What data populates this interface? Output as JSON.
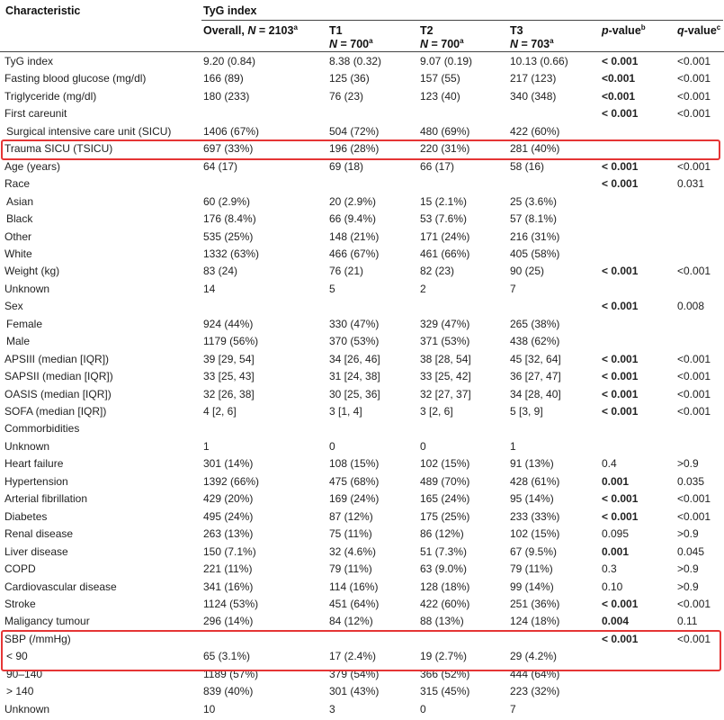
{
  "header": {
    "characteristic": "Characteristic",
    "group": "TyG index",
    "overall": {
      "label": "Overall,",
      "n": "N",
      "eq": " = 2103",
      "sup": "a"
    },
    "t1": {
      "label": "T1",
      "n": "N",
      "eq": " = 700",
      "sup": "a"
    },
    "t2": {
      "label": "T2",
      "n": "N",
      "eq": " = 700",
      "sup": "a"
    },
    "t3": {
      "label": "T3",
      "n": "N",
      "eq": " = 703",
      "sup": "a"
    },
    "p": {
      "label": "p",
      "rest": "-value",
      "sup": "b"
    },
    "q": {
      "label": "q",
      "rest": "-value",
      "sup": "c"
    }
  },
  "rows": [
    {
      "label": "TyG index",
      "overall": "9.20 (0.84)",
      "t1": "8.38 (0.32)",
      "t2": "9.07 (0.19)",
      "t3": "10.13 (0.66)",
      "p": "< 0.001",
      "p_bold": true,
      "q": "<0.001"
    },
    {
      "label": "Fasting blood glucose (mg/dl)",
      "overall": "166 (89)",
      "t1": "125 (36)",
      "t2": "157 (55)",
      "t3": "217 (123)",
      "p": "<0.001",
      "p_bold": true,
      "q": "<0.001"
    },
    {
      "label": "Triglyceride (mg/dl)",
      "overall": "180 (233)",
      "t1": "76 (23)",
      "t2": "123 (40)",
      "t3": "340 (348)",
      "p": "<0.001",
      "p_bold": true,
      "q": "<0.001"
    },
    {
      "label": "First careunit",
      "overall": "",
      "t1": "",
      "t2": "",
      "t3": "",
      "p": "< 0.001",
      "p_bold": true,
      "q": "<0.001"
    },
    {
      "label": "Surgical intensive care unit (SICU)",
      "indent": true,
      "overall": "1406 (67%)",
      "t1": "504 (72%)",
      "t2": "480 (69%)",
      "t3": "422 (60%)",
      "p": "",
      "q": ""
    },
    {
      "label": "Trauma SICU (TSICU)",
      "overall": "697 (33%)",
      "t1": "196 (28%)",
      "t2": "220 (31%)",
      "t3": "281 (40%)",
      "p": "",
      "q": ""
    },
    {
      "label": "Age (years)",
      "overall": "64 (17)",
      "t1": "69 (18)",
      "t2": "66 (17)",
      "t3": "58 (16)",
      "p": "< 0.001",
      "p_bold": true,
      "q": "<0.001"
    },
    {
      "label": "Race",
      "overall": "",
      "t1": "",
      "t2": "",
      "t3": "",
      "p": "< 0.001",
      "p_bold": true,
      "q": "0.031"
    },
    {
      "label": "Asian",
      "indent": true,
      "overall": "60 (2.9%)",
      "t1": "20 (2.9%)",
      "t2": "15 (2.1%)",
      "t3": "25 (3.6%)",
      "p": "",
      "q": ""
    },
    {
      "label": "Black",
      "indent": true,
      "overall": "176 (8.4%)",
      "t1": "66 (9.4%)",
      "t2": "53 (7.6%)",
      "t3": "57 (8.1%)",
      "p": "",
      "q": ""
    },
    {
      "label": "Other",
      "overall": "535 (25%)",
      "t1": "148 (21%)",
      "t2": "171 (24%)",
      "t3": "216 (31%)",
      "p": "",
      "q": ""
    },
    {
      "label": "White",
      "overall": "1332 (63%)",
      "t1": "466 (67%)",
      "t2": "461 (66%)",
      "t3": "405 (58%)",
      "p": "",
      "q": ""
    },
    {
      "label": "Weight (kg)",
      "overall": "83 (24)",
      "t1": "76 (21)",
      "t2": "82 (23)",
      "t3": "90 (25)",
      "p": "< 0.001",
      "p_bold": true,
      "q": "<0.001"
    },
    {
      "label": "Unknown",
      "overall": "14",
      "t1": "5",
      "t2": "2",
      "t3": "7",
      "p": "",
      "q": ""
    },
    {
      "label": "Sex",
      "overall": "",
      "t1": "",
      "t2": "",
      "t3": "",
      "p": "< 0.001",
      "p_bold": true,
      "q": "0.008"
    },
    {
      "label": "Female",
      "indent": true,
      "overall": "924 (44%)",
      "t1": "330 (47%)",
      "t2": "329 (47%)",
      "t3": "265 (38%)",
      "p": "",
      "q": ""
    },
    {
      "label": "Male",
      "indent": true,
      "overall": "1179 (56%)",
      "t1": "370 (53%)",
      "t2": "371 (53%)",
      "t3": "438 (62%)",
      "p": "",
      "q": ""
    },
    {
      "label": "APSIII (median [IQR])",
      "overall": "39 [29, 54]",
      "t1": "34 [26, 46]",
      "t2": "38 [28, 54]",
      "t3": "45 [32, 64]",
      "p": "< 0.001",
      "p_bold": true,
      "q": "<0.001"
    },
    {
      "label": "SAPSII (median [IQR])",
      "overall": "33 [25, 43]",
      "t1": "31 [24, 38]",
      "t2": "33 [25, 42]",
      "t3": "36 [27, 47]",
      "p": "< 0.001",
      "p_bold": true,
      "q": "<0.001"
    },
    {
      "label": "OASIS (median [IQR])",
      "overall": "32 [26, 38]",
      "t1": "30 [25, 36]",
      "t2": "32 [27, 37]",
      "t3": "34 [28, 40]",
      "p": "< 0.001",
      "p_bold": true,
      "q": "<0.001"
    },
    {
      "label": "SOFA (median [IQR])",
      "overall": "4 [2, 6]",
      "t1": "3 [1, 4]",
      "t2": "3 [2, 6]",
      "t3": "5 [3, 9]",
      "p": "< 0.001",
      "p_bold": true,
      "q": "<0.001"
    },
    {
      "label": "Commorbidities",
      "overall": "",
      "t1": "",
      "t2": "",
      "t3": "",
      "p": "",
      "q": ""
    },
    {
      "label": "Unknown",
      "overall": "1",
      "t1": "0",
      "t2": "0",
      "t3": "1",
      "p": "",
      "q": ""
    },
    {
      "label": "Heart failure",
      "overall": "301 (14%)",
      "t1": "108 (15%)",
      "t2": "102 (15%)",
      "t3": "91 (13%)",
      "p": "0.4",
      "q": ">0.9"
    },
    {
      "label": "Hypertension",
      "overall": "1392 (66%)",
      "t1": "475 (68%)",
      "t2": "489 (70%)",
      "t3": "428 (61%)",
      "p": "0.001",
      "p_bold": true,
      "q": "0.035"
    },
    {
      "label": "Arterial fibrillation",
      "overall": "429 (20%)",
      "t1": "169 (24%)",
      "t2": "165 (24%)",
      "t3": "95 (14%)",
      "p": "< 0.001",
      "p_bold": true,
      "q": "<0.001"
    },
    {
      "label": "Diabetes",
      "overall": "495 (24%)",
      "t1": "87 (12%)",
      "t2": "175 (25%)",
      "t3": "233 (33%)",
      "p": "< 0.001",
      "p_bold": true,
      "q": "<0.001"
    },
    {
      "label": "Renal disease",
      "overall": "263 (13%)",
      "t1": "75 (11%)",
      "t2": "86 (12%)",
      "t3": "102 (15%)",
      "p": "0.095",
      "q": ">0.9"
    },
    {
      "label": "Liver disease",
      "overall": "150 (7.1%)",
      "t1": "32 (4.6%)",
      "t2": "51 (7.3%)",
      "t3": "67 (9.5%)",
      "p": "0.001",
      "p_bold": true,
      "q": "0.045"
    },
    {
      "label": "COPD",
      "overall": "221 (11%)",
      "t1": "79 (11%)",
      "t2": "63 (9.0%)",
      "t3": "79 (11%)",
      "p": "0.3",
      "q": ">0.9"
    },
    {
      "label": "Cardiovascular disease",
      "overall": "341 (16%)",
      "t1": "114 (16%)",
      "t2": "128 (18%)",
      "t3": "99 (14%)",
      "p": "0.10",
      "q": ">0.9"
    },
    {
      "label": "Stroke",
      "overall": "1124 (53%)",
      "t1": "451 (64%)",
      "t2": "422 (60%)",
      "t3": "251 (36%)",
      "p": "< 0.001",
      "p_bold": true,
      "q": "<0.001"
    },
    {
      "label": "Maligancy tumour",
      "overall": "296 (14%)",
      "t1": "84 (12%)",
      "t2": "88 (13%)",
      "t3": "124 (18%)",
      "p": "0.004",
      "p_bold": true,
      "q": "0.11"
    },
    {
      "label": "SBP (/mmHg)",
      "overall": "",
      "t1": "",
      "t2": "",
      "t3": "",
      "p": "< 0.001",
      "p_bold": true,
      "q": "<0.001"
    },
    {
      "label": "< 90",
      "indent": true,
      "overall": "65 (3.1%)",
      "t1": "17 (2.4%)",
      "t2": "19 (2.7%)",
      "t3": "29 (4.2%)",
      "p": "",
      "q": ""
    },
    {
      "label": "90–140",
      "indent": true,
      "overall": "1189 (57%)",
      "t1": "379 (54%)",
      "t2": "366 (52%)",
      "t3": "444 (64%)",
      "p": "",
      "q": ""
    },
    {
      "label": "> 140",
      "indent": true,
      "overall": "839 (40%)",
      "t1": "301 (43%)",
      "t2": "315 (45%)",
      "t3": "223 (32%)",
      "p": "",
      "q": ""
    },
    {
      "label": "Unknown",
      "overall": "10",
      "t1": "3",
      "t2": "0",
      "t3": "7",
      "p": "",
      "q": ""
    }
  ],
  "highlight_color": "#e53535"
}
